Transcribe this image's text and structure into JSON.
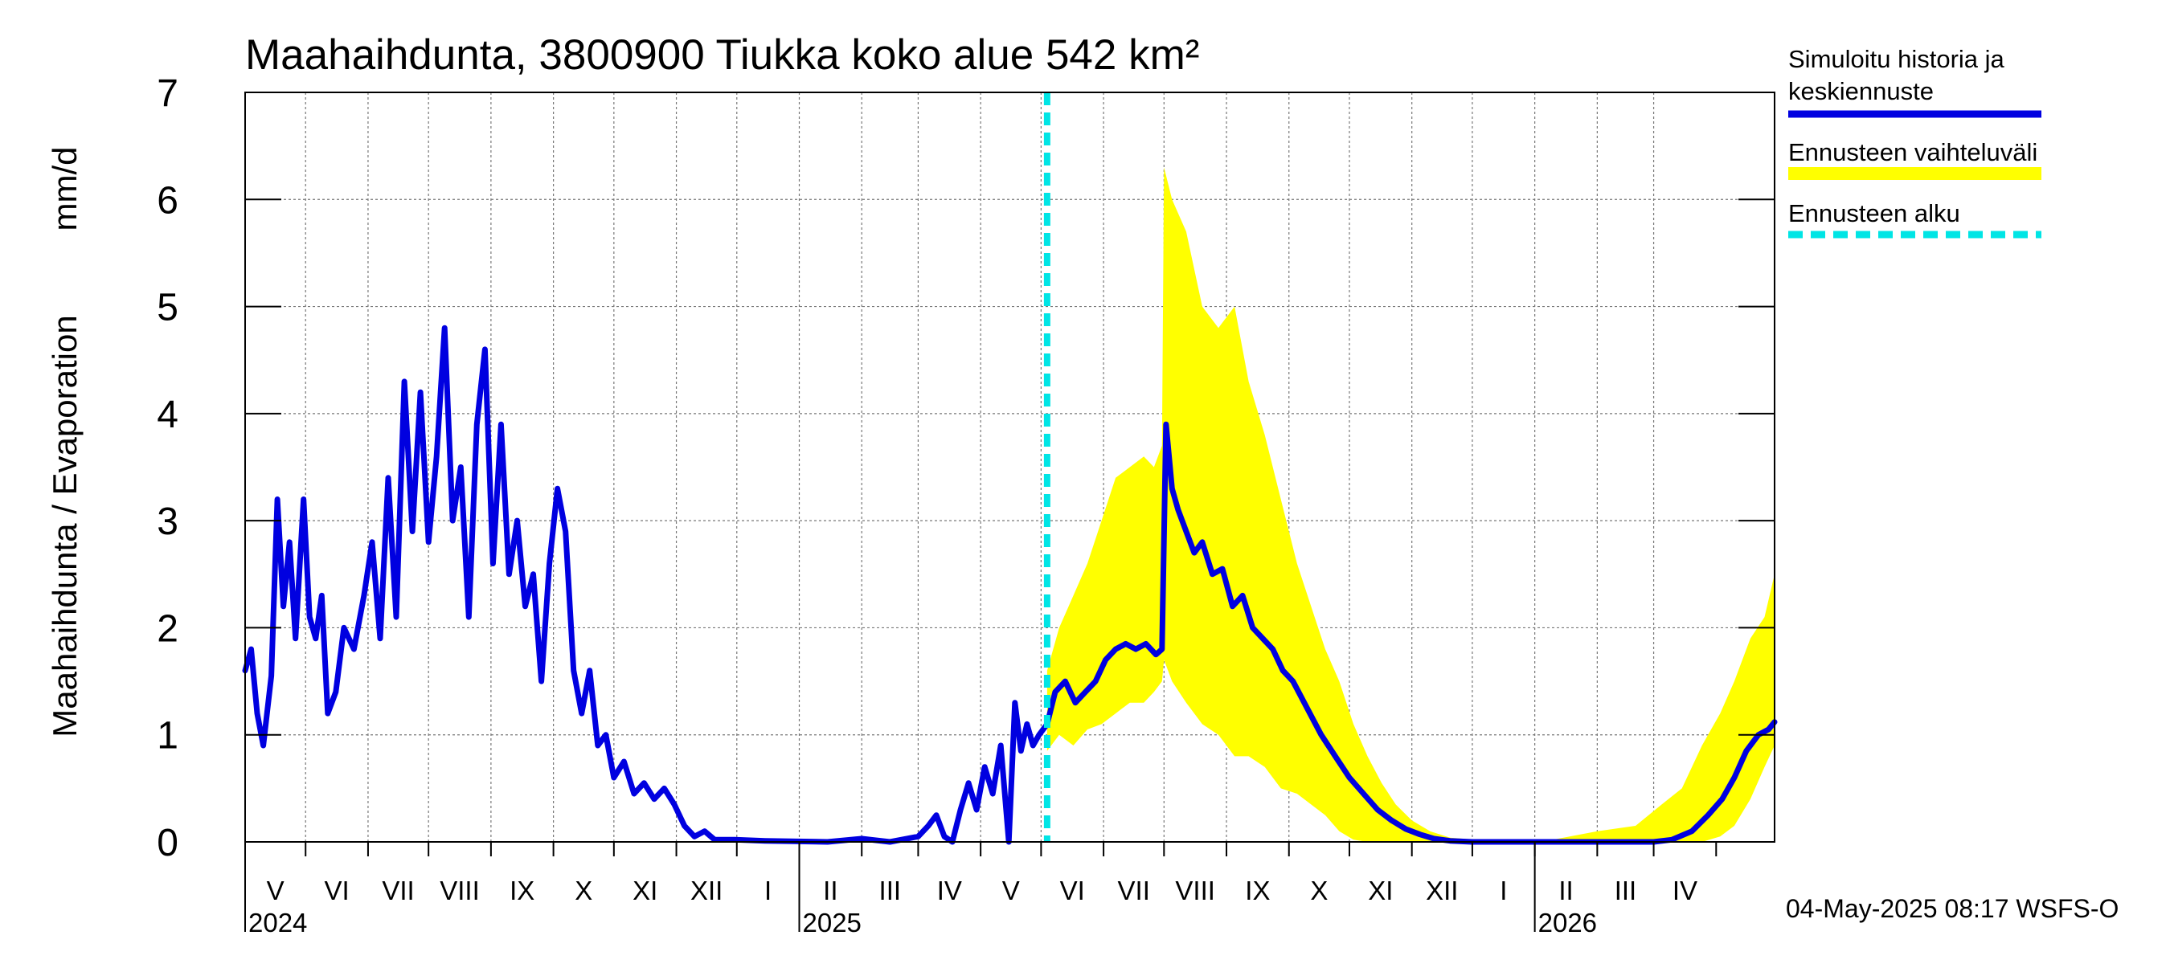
{
  "chart_data": {
    "type": "line",
    "title": "Maahaihdunta, 3800900 Tiukka koko alue 542 km²",
    "ylabel_left": "Maahaihdunta / Evaporation",
    "ylabel_unit": "mm/d",
    "ylim": [
      0,
      7
    ],
    "yticks": [
      "0",
      "1",
      "2",
      "3",
      "4",
      "5",
      "6",
      "7"
    ],
    "x_range": [
      "2024-04-01",
      "2026-04-30"
    ],
    "month_labels": [
      "V",
      "VI",
      "VII",
      "VIII",
      "IX",
      "X",
      "XI",
      "XII",
      "I",
      "II",
      "III",
      "IV",
      "V",
      "VI",
      "VII",
      "VIII",
      "IX",
      "X",
      "XI",
      "XII",
      "I",
      "II",
      "III",
      "IV"
    ],
    "year_labels": [
      {
        "label": "2024",
        "date": "2024-04-01"
      },
      {
        "label": "2025",
        "date": "2025-01-01"
      },
      {
        "label": "2026",
        "date": "2026-01-01"
      }
    ],
    "grid": true,
    "legend_placement": "right",
    "forecast_start": "2025-05-04",
    "series": [
      {
        "name": "Simuloitu historia ja keskiennuste",
        "color": "#0000e0",
        "points": [
          [
            "2024-04-01",
            1.6
          ],
          [
            "2024-04-04",
            1.8
          ],
          [
            "2024-04-07",
            1.2
          ],
          [
            "2024-04-10",
            0.9
          ],
          [
            "2024-04-14",
            1.55
          ],
          [
            "2024-04-17",
            3.2
          ],
          [
            "2024-04-20",
            2.2
          ],
          [
            "2024-04-23",
            2.8
          ],
          [
            "2024-04-26",
            1.9
          ],
          [
            "2024-04-30",
            3.2
          ],
          [
            "2024-05-03",
            2.1
          ],
          [
            "2024-05-06",
            1.9
          ],
          [
            "2024-05-09",
            2.3
          ],
          [
            "2024-05-12",
            1.2
          ],
          [
            "2024-05-16",
            1.4
          ],
          [
            "2024-05-20",
            2.0
          ],
          [
            "2024-05-25",
            1.8
          ],
          [
            "2024-05-30",
            2.3
          ],
          [
            "2024-06-03",
            2.8
          ],
          [
            "2024-06-07",
            1.9
          ],
          [
            "2024-06-11",
            3.4
          ],
          [
            "2024-06-15",
            2.1
          ],
          [
            "2024-06-19",
            4.3
          ],
          [
            "2024-06-23",
            2.9
          ],
          [
            "2024-06-27",
            4.2
          ],
          [
            "2024-07-01",
            2.8
          ],
          [
            "2024-07-05",
            3.6
          ],
          [
            "2024-07-09",
            4.8
          ],
          [
            "2024-07-13",
            3.0
          ],
          [
            "2024-07-17",
            3.5
          ],
          [
            "2024-07-21",
            2.1
          ],
          [
            "2024-07-25",
            3.9
          ],
          [
            "2024-07-29",
            4.6
          ],
          [
            "2024-08-02",
            2.6
          ],
          [
            "2024-08-06",
            3.9
          ],
          [
            "2024-08-10",
            2.5
          ],
          [
            "2024-08-14",
            3.0
          ],
          [
            "2024-08-18",
            2.2
          ],
          [
            "2024-08-22",
            2.5
          ],
          [
            "2024-08-26",
            1.5
          ],
          [
            "2024-08-30",
            2.6
          ],
          [
            "2024-09-03",
            3.3
          ],
          [
            "2024-09-07",
            2.9
          ],
          [
            "2024-09-11",
            1.6
          ],
          [
            "2024-09-15",
            1.2
          ],
          [
            "2024-09-19",
            1.6
          ],
          [
            "2024-09-23",
            0.9
          ],
          [
            "2024-09-27",
            1.0
          ],
          [
            "2024-10-01",
            0.6
          ],
          [
            "2024-10-06",
            0.75
          ],
          [
            "2024-10-11",
            0.45
          ],
          [
            "2024-10-16",
            0.55
          ],
          [
            "2024-10-21",
            0.4
          ],
          [
            "2024-10-26",
            0.5
          ],
          [
            "2024-10-31",
            0.35
          ],
          [
            "2024-11-05",
            0.15
          ],
          [
            "2024-11-10",
            0.05
          ],
          [
            "2024-11-15",
            0.1
          ],
          [
            "2024-11-20",
            0.02
          ],
          [
            "2024-11-30",
            0.02
          ],
          [
            "2024-12-15",
            0.01
          ],
          [
            "2025-01-15",
            0.0
          ],
          [
            "2025-02-01",
            0.03
          ],
          [
            "2025-02-15",
            0.0
          ],
          [
            "2025-03-01",
            0.05
          ],
          [
            "2025-03-06",
            0.15
          ],
          [
            "2025-03-10",
            0.25
          ],
          [
            "2025-03-14",
            0.05
          ],
          [
            "2025-03-18",
            0.0
          ],
          [
            "2025-03-22",
            0.3
          ],
          [
            "2025-03-26",
            0.55
          ],
          [
            "2025-03-30",
            0.3
          ],
          [
            "2025-04-03",
            0.7
          ],
          [
            "2025-04-07",
            0.45
          ],
          [
            "2025-04-11",
            0.9
          ],
          [
            "2025-04-15",
            0.0
          ],
          [
            "2025-04-18",
            1.3
          ],
          [
            "2025-04-21",
            0.85
          ],
          [
            "2025-04-24",
            1.1
          ],
          [
            "2025-04-27",
            0.9
          ],
          [
            "2025-04-30",
            1.0
          ],
          [
            "2025-05-04",
            1.1
          ],
          [
            "2025-05-08",
            1.4
          ],
          [
            "2025-05-13",
            1.5
          ],
          [
            "2025-05-18",
            1.3
          ],
          [
            "2025-05-23",
            1.4
          ],
          [
            "2025-05-28",
            1.5
          ],
          [
            "2025-06-02",
            1.7
          ],
          [
            "2025-06-07",
            1.8
          ],
          [
            "2025-06-12",
            1.85
          ],
          [
            "2025-06-17",
            1.8
          ],
          [
            "2025-06-22",
            1.85
          ],
          [
            "2025-06-27",
            1.75
          ],
          [
            "2025-06-30",
            1.8
          ],
          [
            "2025-07-02",
            3.9
          ],
          [
            "2025-07-05",
            3.3
          ],
          [
            "2025-07-08",
            3.1
          ],
          [
            "2025-07-12",
            2.9
          ],
          [
            "2025-07-16",
            2.7
          ],
          [
            "2025-07-20",
            2.8
          ],
          [
            "2025-07-25",
            2.5
          ],
          [
            "2025-07-30",
            2.55
          ],
          [
            "2025-08-04",
            2.2
          ],
          [
            "2025-08-09",
            2.3
          ],
          [
            "2025-08-14",
            2.0
          ],
          [
            "2025-08-19",
            1.9
          ],
          [
            "2025-08-24",
            1.8
          ],
          [
            "2025-08-29",
            1.6
          ],
          [
            "2025-09-03",
            1.5
          ],
          [
            "2025-09-10",
            1.25
          ],
          [
            "2025-09-17",
            1.0
          ],
          [
            "2025-09-24",
            0.8
          ],
          [
            "2025-10-01",
            0.6
          ],
          [
            "2025-10-08",
            0.45
          ],
          [
            "2025-10-15",
            0.3
          ],
          [
            "2025-10-22",
            0.2
          ],
          [
            "2025-10-29",
            0.12
          ],
          [
            "2025-11-05",
            0.07
          ],
          [
            "2025-11-12",
            0.03
          ],
          [
            "2025-11-20",
            0.01
          ],
          [
            "2025-12-01",
            0.0
          ],
          [
            "2026-01-01",
            0.0
          ],
          [
            "2026-02-01",
            0.0
          ],
          [
            "2026-03-01",
            0.0
          ],
          [
            "2026-03-10",
            0.02
          ],
          [
            "2026-03-20",
            0.1
          ],
          [
            "2026-03-28",
            0.25
          ],
          [
            "2026-04-04",
            0.4
          ],
          [
            "2026-04-10",
            0.6
          ],
          [
            "2026-04-16",
            0.85
          ],
          [
            "2026-04-22",
            1.0
          ],
          [
            "2026-04-27",
            1.05
          ],
          [
            "2026-04-30",
            1.12
          ]
        ]
      },
      {
        "name": "Ennusteen vaihteluväli",
        "color": "#ffff00",
        "band": [
          [
            "2025-05-04",
            0.85,
            1.6
          ],
          [
            "2025-05-10",
            1.0,
            2.0
          ],
          [
            "2025-05-17",
            0.9,
            2.3
          ],
          [
            "2025-05-24",
            1.05,
            2.6
          ],
          [
            "2025-05-31",
            1.1,
            3.0
          ],
          [
            "2025-06-07",
            1.2,
            3.4
          ],
          [
            "2025-06-14",
            1.3,
            3.5
          ],
          [
            "2025-06-21",
            1.3,
            3.6
          ],
          [
            "2025-06-26",
            1.4,
            3.5
          ],
          [
            "2025-06-30",
            1.5,
            3.7
          ],
          [
            "2025-07-01",
            1.7,
            6.3
          ],
          [
            "2025-07-05",
            1.5,
            6.0
          ],
          [
            "2025-07-12",
            1.3,
            5.7
          ],
          [
            "2025-07-20",
            1.1,
            5.0
          ],
          [
            "2025-07-28",
            1.0,
            4.8
          ],
          [
            "2025-08-05",
            0.8,
            5.0
          ],
          [
            "2025-08-12",
            0.8,
            4.3
          ],
          [
            "2025-08-20",
            0.7,
            3.8
          ],
          [
            "2025-08-28",
            0.5,
            3.2
          ],
          [
            "2025-09-05",
            0.45,
            2.6
          ],
          [
            "2025-09-12",
            0.35,
            2.2
          ],
          [
            "2025-09-19",
            0.25,
            1.8
          ],
          [
            "2025-09-26",
            0.1,
            1.5
          ],
          [
            "2025-10-03",
            0.02,
            1.1
          ],
          [
            "2025-10-10",
            0.0,
            0.8
          ],
          [
            "2025-10-17",
            0.0,
            0.55
          ],
          [
            "2025-10-24",
            0.0,
            0.35
          ],
          [
            "2025-11-01",
            0.0,
            0.2
          ],
          [
            "2025-11-10",
            0.0,
            0.1
          ],
          [
            "2025-11-20",
            0.0,
            0.04
          ],
          [
            "2025-12-10",
            0.0,
            0.01
          ],
          [
            "2026-01-10",
            0.0,
            0.02
          ],
          [
            "2026-02-01",
            0.0,
            0.1
          ],
          [
            "2026-02-20",
            0.0,
            0.15
          ],
          [
            "2026-03-05",
            0.0,
            0.35
          ],
          [
            "2026-03-15",
            0.0,
            0.5
          ],
          [
            "2026-03-25",
            0.0,
            0.9
          ],
          [
            "2026-04-03",
            0.05,
            1.2
          ],
          [
            "2026-04-10",
            0.15,
            1.5
          ],
          [
            "2026-04-18",
            0.4,
            1.9
          ],
          [
            "2026-04-25",
            0.7,
            2.1
          ],
          [
            "2026-04-30",
            0.9,
            2.5
          ]
        ]
      },
      {
        "name": "Ennusteen alku",
        "color": "#00e5e5"
      }
    ]
  },
  "timestamp": "04-May-2025 08:17 WSFS-O"
}
